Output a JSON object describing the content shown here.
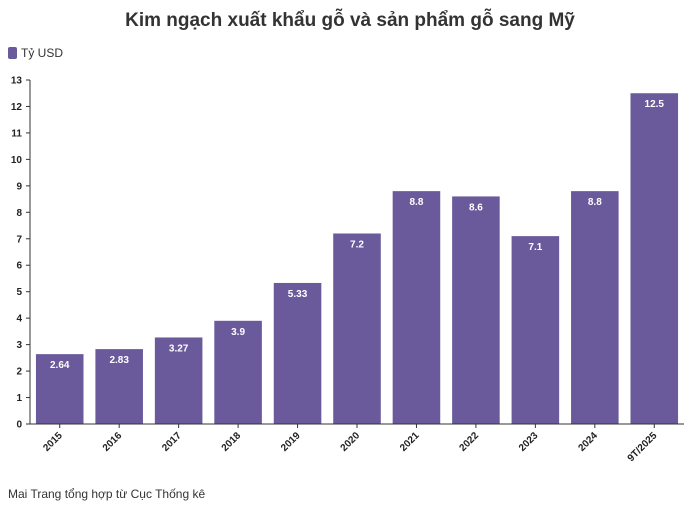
{
  "chart_data": {
    "type": "bar",
    "title": "Kim ngạch xuất khẩu gỗ và sản phẩm gỗ sang Mỹ",
    "legend": "Tỷ USD",
    "legend_position": "top-left",
    "categories": [
      "2015",
      "2016",
      "2017",
      "2018",
      "2019",
      "2020",
      "2021",
      "2022",
      "2023",
      "2024",
      "9T/2025"
    ],
    "series": [
      {
        "name": "Tỷ USD",
        "values": [
          2.64,
          2.83,
          3.27,
          3.9,
          5.33,
          7.2,
          8.8,
          8.6,
          7.1,
          8.8,
          12.5
        ],
        "labels": [
          "2.64",
          "2.83",
          "3.27",
          "3.9",
          "5.33",
          "7.2",
          "8.8",
          "8.6",
          "7.1",
          "8.8",
          "12.5"
        ]
      }
    ],
    "ylim": [
      0,
      13
    ],
    "yticks": [
      0,
      1,
      2,
      3,
      4,
      5,
      6,
      7,
      8,
      9,
      10,
      11,
      12,
      13
    ],
    "grid": false,
    "bar_color": "#6a5a9b",
    "source": "Mai Trang tổng hợp từ Cục Thống kê"
  }
}
